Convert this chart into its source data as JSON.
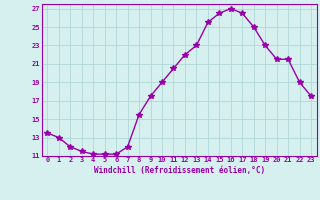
{
  "x": [
    0,
    1,
    2,
    3,
    4,
    5,
    6,
    7,
    8,
    9,
    10,
    11,
    12,
    13,
    14,
    15,
    16,
    17,
    18,
    19,
    20,
    21,
    22,
    23
  ],
  "y": [
    13.5,
    13.0,
    12.0,
    11.5,
    11.2,
    11.2,
    11.2,
    12.0,
    15.5,
    17.5,
    19.0,
    20.5,
    22.0,
    23.0,
    25.5,
    26.5,
    27.0,
    26.5,
    25.0,
    23.0,
    21.5,
    21.5,
    19.0,
    17.5
  ],
  "line_color": "#9900aa",
  "marker": "*",
  "marker_size": 4,
  "bg_color": "#d6f0f0",
  "grid_color": "#b0d8d8",
  "text_color": "#9900aa",
  "xlabel": "Windchill (Refroidissement éolien,°C)",
  "ylim": [
    11,
    27
  ],
  "yticks": [
    11,
    13,
    15,
    17,
    19,
    21,
    23,
    25,
    27
  ],
  "xticks": [
    0,
    1,
    2,
    3,
    4,
    5,
    6,
    7,
    8,
    9,
    10,
    11,
    12,
    13,
    14,
    15,
    16,
    17,
    18,
    19,
    20,
    21,
    22,
    23
  ],
  "xlim": [
    -0.5,
    23.5
  ]
}
